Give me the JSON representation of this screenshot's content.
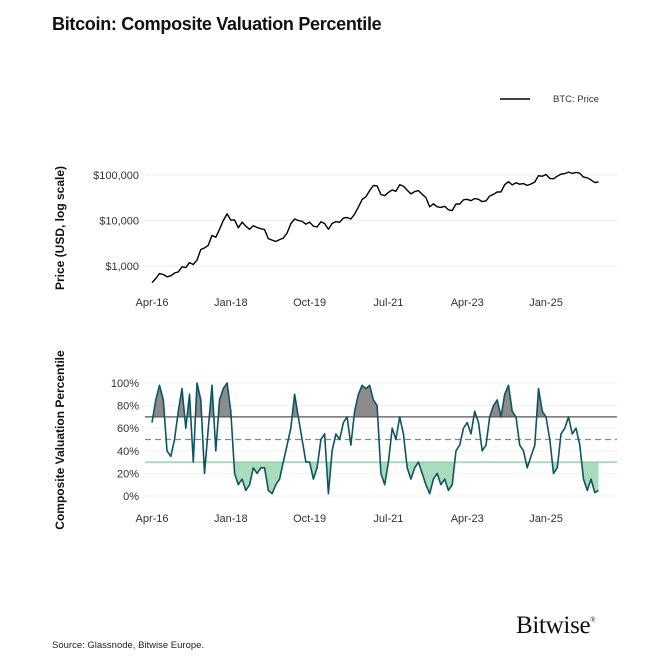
{
  "title": "Bitcoin: Composite Valuation Percentile",
  "source": "Source: Glassnode, Bitwise Europe.",
  "logo": "Bitwise",
  "colors": {
    "price_line": "#000000",
    "percentile_line": "#0e5461",
    "overvalued_fill": "#8c8c8c",
    "undervalued_fill": "#a9dcbc",
    "upper_line": "#555555",
    "lower_line": "#8cc7a0",
    "mid_line": "#888888"
  },
  "chart_data": [
    {
      "type": "line",
      "ylabel": "Price (USD, log scale)",
      "yscale": "log",
      "ylim": [
        300,
        150000
      ],
      "yticks": [
        {
          "value": 100000,
          "label": "$100,000"
        },
        {
          "value": 10000,
          "label": "$10,000"
        },
        {
          "value": 1000,
          "label": "$1,000"
        }
      ],
      "xticks": [
        "Apr-16",
        "Jan-18",
        "Oct-19",
        "Jul-21",
        "Apr-23",
        "Jan-25"
      ],
      "legend": {
        "position": "top-right",
        "entries": [
          "BTC: Price"
        ]
      },
      "series": [
        {
          "name": "BTC: Price",
          "x": [
            "2016-04",
            "2016-05",
            "2016-06",
            "2016-07",
            "2016-08",
            "2016-09",
            "2016-10",
            "2016-11",
            "2016-12",
            "2017-01",
            "2017-02",
            "2017-03",
            "2017-04",
            "2017-05",
            "2017-06",
            "2017-07",
            "2017-08",
            "2017-09",
            "2017-10",
            "2017-11",
            "2017-12",
            "2018-01",
            "2018-02",
            "2018-03",
            "2018-04",
            "2018-05",
            "2018-06",
            "2018-07",
            "2018-08",
            "2018-09",
            "2018-10",
            "2018-11",
            "2018-12",
            "2019-01",
            "2019-02",
            "2019-03",
            "2019-04",
            "2019-05",
            "2019-06",
            "2019-07",
            "2019-08",
            "2019-09",
            "2019-10",
            "2019-11",
            "2019-12",
            "2020-01",
            "2020-02",
            "2020-03",
            "2020-04",
            "2020-05",
            "2020-06",
            "2020-07",
            "2020-08",
            "2020-09",
            "2020-10",
            "2020-11",
            "2020-12",
            "2021-01",
            "2021-02",
            "2021-03",
            "2021-04",
            "2021-05",
            "2021-06",
            "2021-07",
            "2021-08",
            "2021-09",
            "2021-10",
            "2021-11",
            "2021-12",
            "2022-01",
            "2022-02",
            "2022-03",
            "2022-04",
            "2022-05",
            "2022-06",
            "2022-07",
            "2022-08",
            "2022-09",
            "2022-10",
            "2022-11",
            "2022-12",
            "2023-01",
            "2023-02",
            "2023-03",
            "2023-04",
            "2023-05",
            "2023-06",
            "2023-07",
            "2023-08",
            "2023-09",
            "2023-10",
            "2023-11",
            "2023-12",
            "2024-01",
            "2024-02",
            "2024-03",
            "2024-04",
            "2024-05",
            "2024-06",
            "2024-07",
            "2024-08",
            "2024-09",
            "2024-10",
            "2024-11",
            "2024-12",
            "2025-01",
            "2025-02",
            "2025-03",
            "2025-04",
            "2025-05",
            "2025-06",
            "2025-07",
            "2025-08",
            "2025-09",
            "2025-10",
            "2025-11",
            "2025-12",
            "2026-01",
            "2026-02",
            "2026-03"
          ],
          "values": [
            430,
            530,
            680,
            650,
            580,
            610,
            700,
            740,
            960,
            920,
            1190,
            1080,
            1350,
            2300,
            2500,
            2850,
            4700,
            4300,
            6400,
            10000,
            14000,
            10200,
            10300,
            6900,
            9200,
            7500,
            6400,
            7700,
            7000,
            6600,
            6300,
            4000,
            3700,
            3450,
            3800,
            4100,
            5300,
            8500,
            10800,
            10000,
            9600,
            8300,
            9200,
            7500,
            7200,
            9350,
            8600,
            6400,
            8600,
            9450,
            9150,
            11300,
            11650,
            10800,
            13800,
            19700,
            29000,
            33100,
            45200,
            58800,
            57700,
            37300,
            35000,
            41500,
            47100,
            43800,
            61300,
            57000,
            46300,
            38500,
            43200,
            45500,
            37700,
            31800,
            19900,
            23300,
            20000,
            19400,
            20500,
            17200,
            16500,
            23100,
            23100,
            28500,
            29200,
            27200,
            30500,
            29200,
            26000,
            27000,
            34500,
            37700,
            42300,
            42600,
            61200,
            71300,
            60600,
            67500,
            62700,
            64600,
            59000,
            63300,
            70200,
            96400,
            93400,
            102400,
            84400,
            82500,
            94200,
            104600,
            107100,
            115700,
            108200,
            114000,
            109500,
            90000,
            87000,
            78000,
            68000,
            70000
          ]
        }
      ]
    },
    {
      "type": "line",
      "ylabel": "Composite Valuation Percentile",
      "ylim": [
        0,
        100
      ],
      "yticks": [
        {
          "value": 100,
          "label": "100%"
        },
        {
          "value": 80,
          "label": "80%"
        },
        {
          "value": 60,
          "label": "60%"
        },
        {
          "value": 40,
          "label": "40%"
        },
        {
          "value": 20,
          "label": "20%"
        },
        {
          "value": 0,
          "label": "0%"
        }
      ],
      "xticks": [
        "Apr-16",
        "Jan-18",
        "Oct-19",
        "Jul-21",
        "Apr-23",
        "Jan-25"
      ],
      "reference_lines": [
        {
          "value": 70,
          "style": "solid"
        },
        {
          "value": 50,
          "style": "dashed"
        },
        {
          "value": 30,
          "style": "solid"
        }
      ],
      "shading": {
        "above": 70,
        "below": 30
      },
      "series": [
        {
          "values": [
            65,
            85,
            98,
            85,
            40,
            35,
            50,
            75,
            95,
            60,
            90,
            30,
            100,
            85,
            20,
            60,
            98,
            40,
            85,
            95,
            100,
            75,
            20,
            10,
            15,
            5,
            10,
            25,
            20,
            25,
            25,
            5,
            2,
            10,
            15,
            30,
            45,
            60,
            90,
            70,
            50,
            30,
            30,
            15,
            25,
            50,
            55,
            2,
            40,
            55,
            50,
            65,
            70,
            45,
            75,
            90,
            98,
            95,
            98,
            85,
            80,
            20,
            10,
            30,
            60,
            50,
            70,
            55,
            25,
            15,
            25,
            30,
            20,
            10,
            2,
            15,
            20,
            10,
            15,
            5,
            10,
            40,
            45,
            60,
            65,
            55,
            75,
            65,
            40,
            45,
            70,
            80,
            85,
            70,
            90,
            98,
            75,
            70,
            45,
            40,
            25,
            35,
            45,
            95,
            75,
            70,
            50,
            20,
            25,
            55,
            60,
            70,
            55,
            60,
            45,
            15,
            5,
            15,
            3,
            5
          ]
        }
      ]
    }
  ]
}
